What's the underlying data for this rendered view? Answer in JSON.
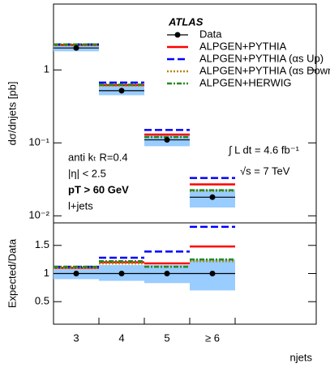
{
  "chart_data": [
    {
      "type": "step",
      "title": "ATLAS",
      "ylabel": "dσ/dnjets [pb]",
      "yscale": "log",
      "ylim": [
        0.008,
        8
      ],
      "yticks": [
        {
          "value": 0.01,
          "label": "10⁻²"
        },
        {
          "value": 0.1,
          "label": "10⁻¹"
        },
        1
      ],
      "legend": "upper right",
      "annotations": [
        "anti kₜ R=0.4",
        "|η| < 2.5",
        "pT > 60 GeV",
        "l+jets"
      ],
      "lumi": "∫ L dt = 4.6 fb⁻¹",
      "energy": "√s = 7 TeV",
      "data": {
        "name": "Data",
        "color": "#000000",
        "band_color": "#99ccff",
        "values": [
          2.0,
          0.52,
          0.11,
          0.018
        ],
        "band_low": [
          1.8,
          0.45,
          0.09,
          0.013
        ],
        "band_high": [
          2.24,
          0.6,
          0.13,
          0.023
        ]
      },
      "series": [
        {
          "name": "ALPGEN+PYTHIA",
          "color": "#ff0000",
          "style": "solid",
          "values": [
            2.2,
            0.62,
            0.13,
            0.027
          ]
        },
        {
          "name": "ALPGEN+PYTHIA (αs Up)",
          "color": "#0000ff",
          "style": "dashed",
          "values": [
            2.24,
            0.67,
            0.15,
            0.033
          ]
        },
        {
          "name": "ALPGEN+PYTHIA (αs Down)",
          "color": "#b8860b",
          "style": "dotted",
          "values": [
            2.2,
            0.61,
            0.12,
            0.022
          ]
        },
        {
          "name": "ALPGEN+HERWIG",
          "color": "#228b22",
          "style": "dashdot",
          "values": [
            2.24,
            0.63,
            0.12,
            0.0225
          ]
        }
      ]
    },
    {
      "type": "step",
      "ylabel": "Expected/Data",
      "xlabel": "njets",
      "categories": [
        "3",
        "4",
        "5",
        "≥ 6"
      ],
      "ylim": [
        0.1,
        1.9
      ],
      "yticks": [
        0.5,
        1,
        1.5
      ],
      "data": {
        "color": "#000000",
        "band_color": "#99ccff",
        "values": [
          1,
          1,
          1,
          1
        ],
        "band_low": [
          0.9,
          0.87,
          0.83,
          0.7
        ],
        "band_high": [
          1.12,
          1.15,
          1.15,
          1.25
        ]
      },
      "series": [
        {
          "color": "#ff0000",
          "style": "solid",
          "values": [
            1.1,
            1.2,
            1.18,
            1.48
          ]
        },
        {
          "color": "#0000ff",
          "style": "dashed",
          "values": [
            1.12,
            1.28,
            1.39,
            1.83
          ]
        },
        {
          "color": "#b8860b",
          "style": "dotted",
          "values": [
            1.1,
            1.18,
            1.12,
            1.22
          ]
        },
        {
          "color": "#228b22",
          "style": "dashdot",
          "values": [
            1.12,
            1.22,
            1.12,
            1.25
          ]
        }
      ]
    }
  ]
}
